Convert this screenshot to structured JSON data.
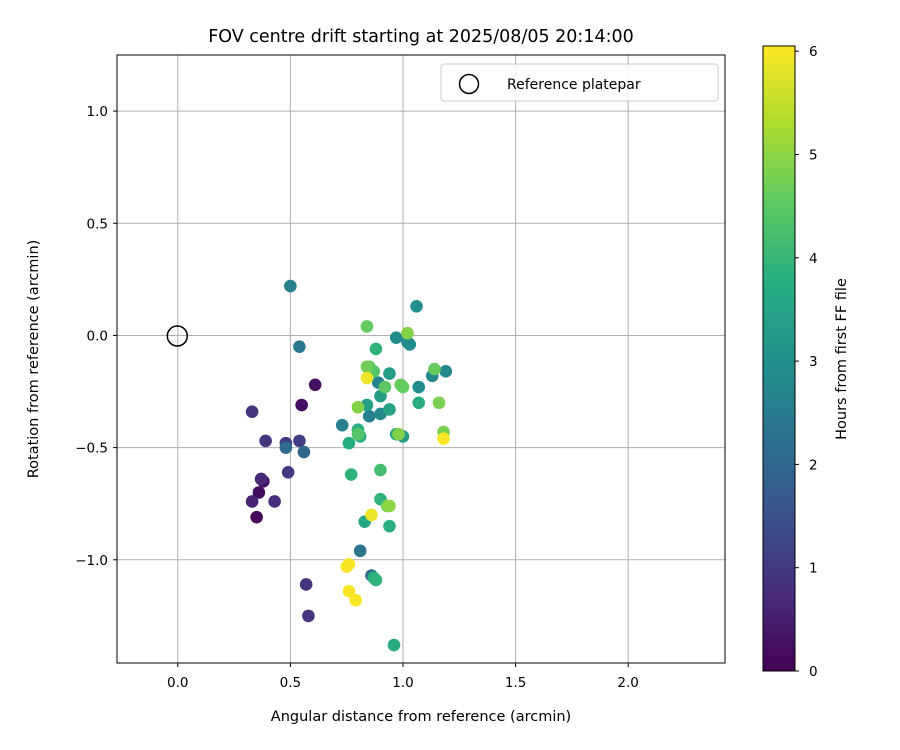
{
  "chart_data": {
    "type": "scatter",
    "title": "FOV centre drift starting at 2025/08/05 20:14:00",
    "xlabel": "Angular distance from reference (arcmin)",
    "ylabel": "Rotation from reference (arcmin)",
    "xlim": [
      -0.27,
      2.43
    ],
    "ylim": [
      -1.46,
      1.25
    ],
    "xticks": [
      0.0,
      0.5,
      1.0,
      1.5,
      2.0
    ],
    "xtick_labels": [
      "0.0",
      "0.5",
      "1.0",
      "1.5",
      "2.0"
    ],
    "yticks": [
      1.0,
      0.5,
      0.0,
      -0.5,
      -1.0
    ],
    "ytick_labels": [
      "1.0",
      "0.5",
      "0.0",
      "−0.5",
      "−1.0"
    ],
    "grid": true,
    "legend": {
      "placement": "upper right",
      "label": "Reference platepar"
    },
    "reference_point": {
      "x": 0.0,
      "y": 0.0
    },
    "colorbar": {
      "label": "Hours from first FF file",
      "min": 0,
      "max": 6.05,
      "ticks": [
        0,
        1,
        2,
        3,
        4,
        5,
        6
      ],
      "colormap": "viridis"
    },
    "series": [
      {
        "x": [
          0.35,
          0.36,
          0.38,
          0.33,
          0.37,
          0.37,
          0.43,
          0.33,
          0.39,
          0.48,
          0.49,
          0.54,
          0.55,
          0.61,
          0.57,
          0.58,
          0.48,
          0.56,
          0.5,
          0.54,
          0.81,
          0.86,
          0.73,
          0.85,
          0.89,
          0.9,
          0.97,
          1.02,
          1.03,
          1.06,
          1.07,
          1.13,
          1.19,
          0.84,
          0.9,
          0.94,
          0.94,
          0.97,
          1.0,
          0.83,
          0.76,
          0.8,
          0.81,
          0.87,
          0.88,
          0.9,
          0.76,
          0.84,
          0.94,
          0.88,
          0.96,
          0.8,
          0.85,
          0.87,
          0.92,
          0.99,
          1.0,
          1.07,
          0.84,
          0.9,
          0.93,
          0.98,
          1.02,
          1.14,
          1.16,
          1.18,
          0.8,
          0.94,
          0.84,
          0.76,
          0.77,
          0.75,
          0.79,
          0.86,
          1.18
        ],
        "y": [
          -0.81,
          -0.7,
          -0.65,
          -0.74,
          -0.64,
          -0.64,
          -0.74,
          -0.34,
          -0.47,
          -0.48,
          -0.61,
          -0.47,
          -0.31,
          -0.22,
          -1.11,
          -1.25,
          -0.5,
          -0.52,
          0.22,
          -0.05,
          -0.96,
          -1.07,
          -0.4,
          -0.36,
          -0.21,
          -0.35,
          -0.01,
          -0.03,
          -0.04,
          0.13,
          -0.23,
          -0.18,
          -0.16,
          -0.31,
          -0.27,
          -0.17,
          -0.33,
          -0.44,
          -0.45,
          -0.83,
          -0.48,
          -0.42,
          -0.45,
          -1.08,
          -1.09,
          -0.73,
          -1.02,
          0.04,
          -0.85,
          -0.06,
          -1.38,
          -0.44,
          -0.14,
          -0.16,
          -0.23,
          -0.22,
          -0.23,
          -0.3,
          -0.14,
          -0.6,
          -0.76,
          -0.44,
          0.01,
          -0.15,
          -0.3,
          -0.43,
          -0.32,
          -0.76,
          -0.19,
          -1.14,
          -0.62,
          -1.03,
          -1.18,
          -0.8,
          -0.46
        ],
        "hours": [
          0.1,
          0.2,
          0.3,
          0.6,
          0.6,
          0.7,
          0.8,
          0.9,
          0.9,
          1.0,
          1.0,
          1.1,
          0.2,
          0.3,
          0.9,
          0.9,
          2.1,
          2.0,
          2.6,
          2.4,
          2.3,
          2.1,
          2.6,
          2.6,
          2.7,
          2.8,
          2.9,
          3.0,
          2.9,
          3.0,
          2.9,
          2.8,
          2.8,
          3.4,
          3.4,
          3.3,
          3.5,
          3.5,
          3.3,
          3.6,
          3.7,
          3.8,
          3.8,
          3.8,
          3.9,
          3.9,
          6.0,
          4.6,
          3.8,
          3.9,
          3.7,
          4.4,
          4.4,
          4.4,
          4.5,
          4.6,
          4.6,
          3.8,
          4.7,
          4.2,
          4.8,
          4.9,
          4.9,
          4.6,
          4.8,
          4.8,
          4.9,
          5.0,
          5.9,
          6.0,
          3.9,
          6.0,
          6.0,
          5.9,
          6.0
        ]
      }
    ]
  }
}
